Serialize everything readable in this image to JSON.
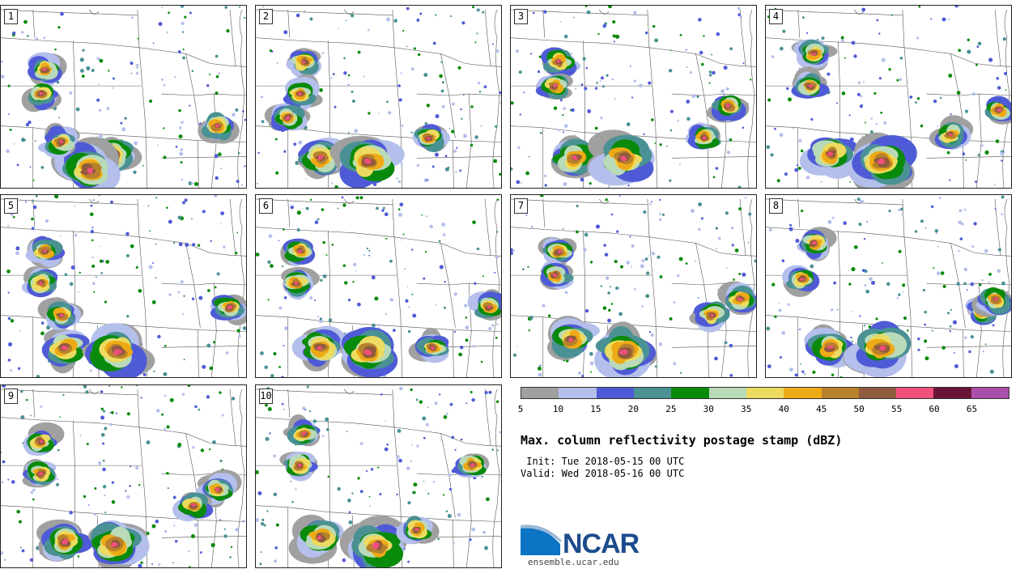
{
  "panels": [
    {
      "label": "1"
    },
    {
      "label": "2"
    },
    {
      "label": "3"
    },
    {
      "label": "4"
    },
    {
      "label": "5"
    },
    {
      "label": "6"
    },
    {
      "label": "7"
    },
    {
      "label": "8"
    },
    {
      "label": "9"
    },
    {
      "label": "10"
    }
  ],
  "colorbar": {
    "colors": [
      "#a0a0a0",
      "#b4bfec",
      "#4f5bd6",
      "#4a9194",
      "#0a8a0a",
      "#b9dab8",
      "#ecdb60",
      "#eeaa16",
      "#b8812c",
      "#8f5a3e",
      "#f0507c",
      "#6c1438",
      "#aa50aa"
    ],
    "ticks": [
      "5",
      "10",
      "15",
      "20",
      "25",
      "30",
      "35",
      "40",
      "45",
      "50",
      "55",
      "60",
      "65"
    ]
  },
  "title": "Max. column reflectivity postage stamp (dBZ)",
  "init_line": " Init: Tue 2018-05-15 00 UTC",
  "valid_line": "Valid: Wed 2018-05-16 00 UTC",
  "logo": {
    "text": "NCAR",
    "site": "ensemble.ucar.edu"
  }
}
